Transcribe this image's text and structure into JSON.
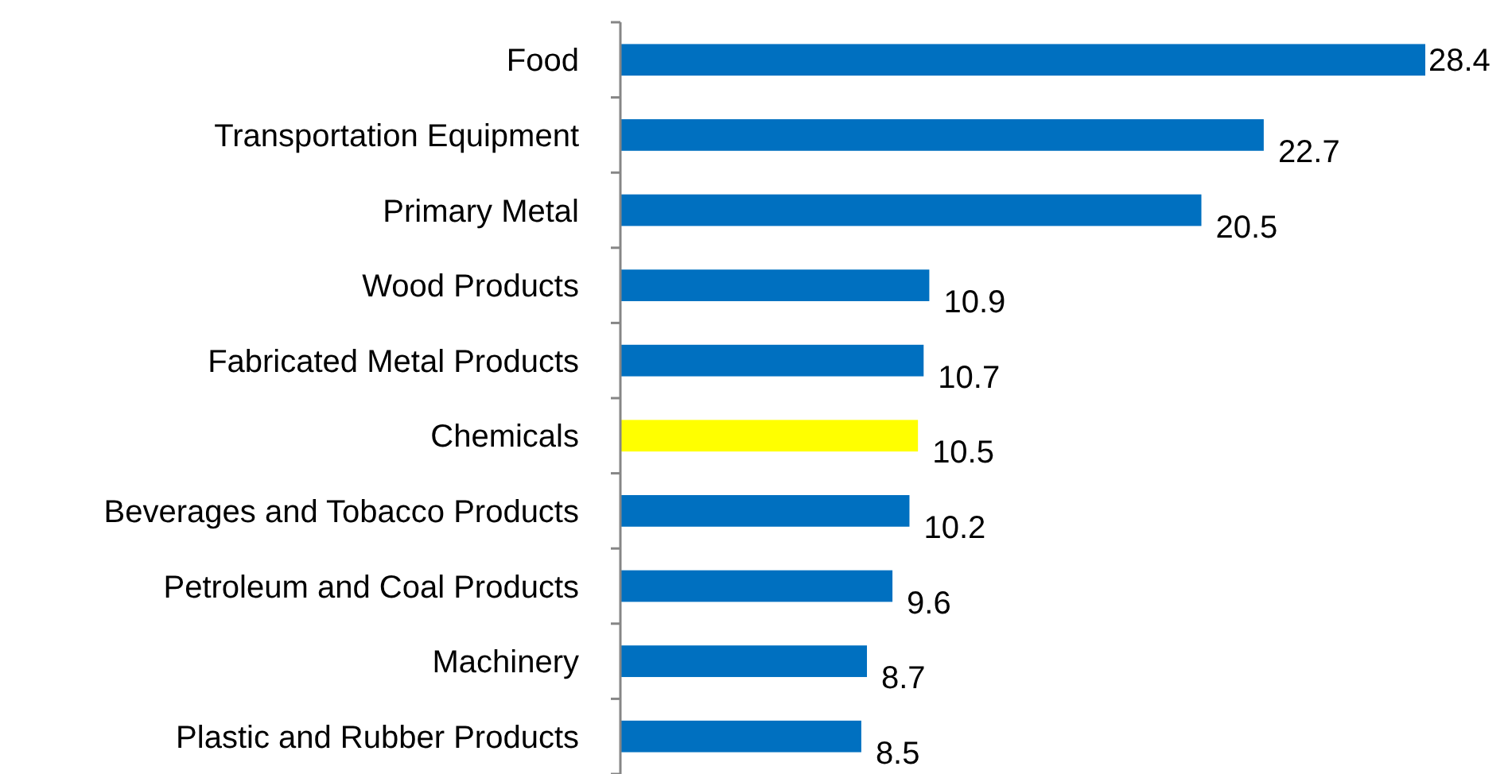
{
  "chart_data": {
    "type": "bar",
    "orientation": "horizontal",
    "categories": [
      "Food",
      "Transportation Equipment",
      "Primary Metal",
      "Wood Products",
      "Fabricated Metal Products",
      "Chemicals",
      "Beverages and Tobacco Products",
      "Petroleum and Coal Products",
      "Machinery",
      "Plastic and Rubber Products"
    ],
    "values": [
      28.4,
      22.7,
      20.5,
      10.9,
      10.7,
      10.5,
      10.2,
      9.6,
      8.7,
      8.5
    ],
    "colors": [
      "#0070c0",
      "#0070c0",
      "#0070c0",
      "#0070c0",
      "#0070c0",
      "#ffff00",
      "#0070c0",
      "#0070c0",
      "#0070c0",
      "#0070c0"
    ],
    "data_labels": true
  }
}
